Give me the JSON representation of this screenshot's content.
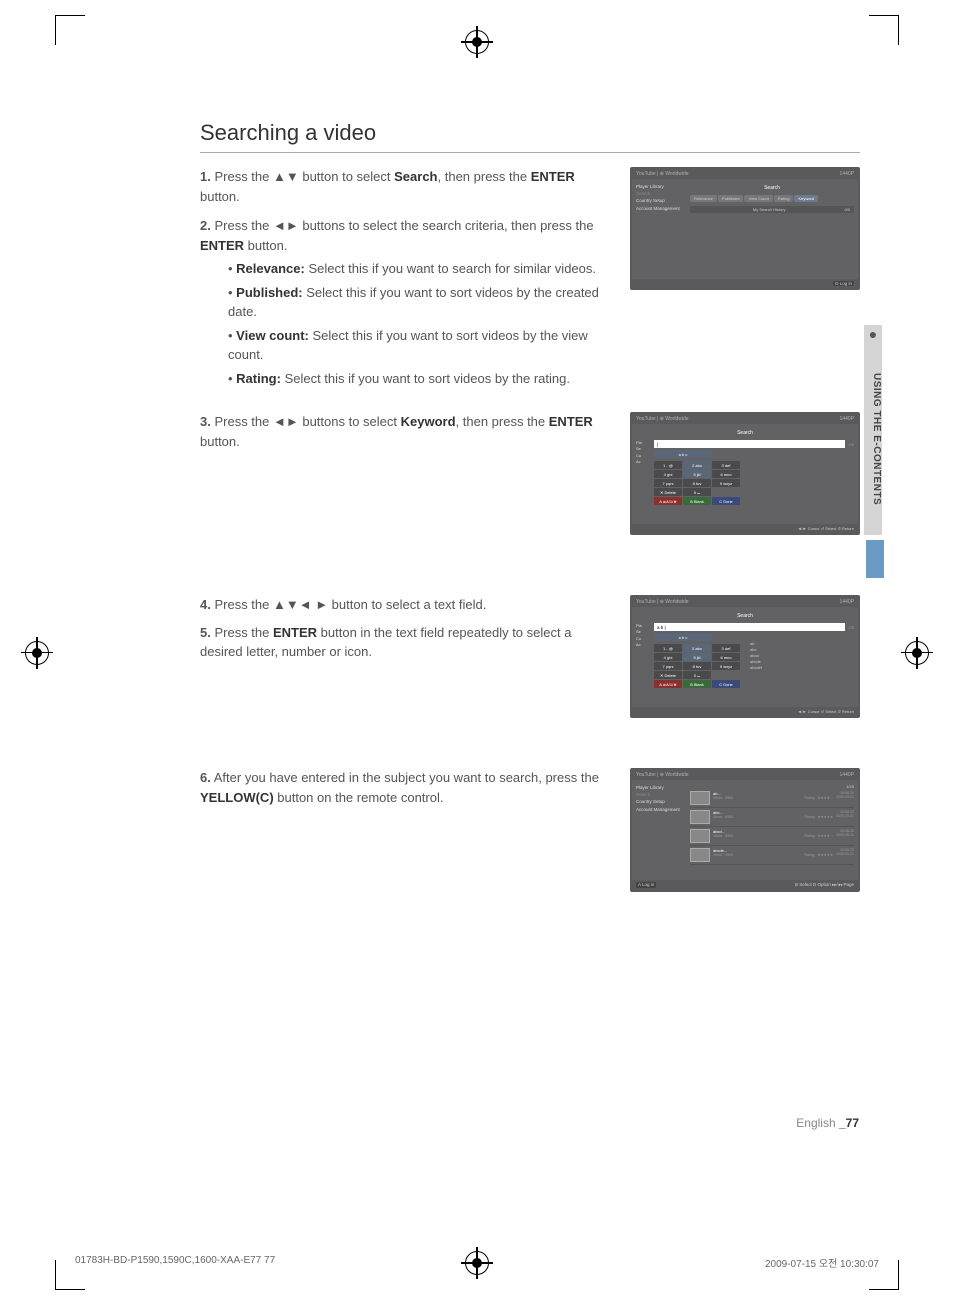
{
  "heading": "Searching a video",
  "steps": [
    {
      "num": "1.",
      "text_parts": [
        "Press the ▲▼  button to select ",
        "Search",
        ", then press the ",
        "ENTER",
        " button."
      ]
    },
    {
      "num": "2.",
      "text_parts": [
        "Press the ◄► buttons to select the search criteria, then press the ",
        "ENTER",
        " button."
      ],
      "bullets": [
        {
          "label": "Relevance:",
          "desc": " Select this if you want to search for similar videos."
        },
        {
          "label": "Published:",
          "desc": " Select this if you want to sort videos by the created date."
        },
        {
          "label": "View count:",
          "desc": " Select this if you want to sort videos by the view count."
        },
        {
          "label": "Rating:",
          "desc": " Select this if you want to sort videos by the rating."
        }
      ]
    },
    {
      "num": "3.",
      "text_parts": [
        "Press the ◄► buttons to select ",
        "Keyword",
        ", then press the ",
        "ENTER",
        " button."
      ]
    },
    {
      "num": "4.",
      "text_parts": [
        "Press the ▲▼◄ ► button to select a text field."
      ]
    },
    {
      "num": "5.",
      "text_parts": [
        "Press the ",
        "ENTER",
        " button in the text field repeatedly to select a desired letter, number or icon."
      ]
    },
    {
      "num": "6.",
      "text_parts": [
        "After you have entered in the subject you want to search, press the ",
        "YELLOW(C)",
        " button on the remote control."
      ]
    }
  ],
  "screenshot1": {
    "header_left": "YouTube | ⊕ Worldwide",
    "header_right": "1440P",
    "sidebar": [
      "Player Library",
      "Search",
      "Country Setup",
      "Account Management"
    ],
    "sidebar_active_idx": 1,
    "title": "Search",
    "tabs": [
      "Relevance",
      "Published",
      "View Count",
      "Rating",
      "Keyword"
    ],
    "history_label": "My Search History",
    "history_count": "0/0",
    "footer": "D Log in"
  },
  "screenshot2": {
    "header_left": "YouTube | ⊕ Worldwide",
    "header_right": "1440P",
    "title": "Search",
    "sidebar_abbr": [
      "Pla",
      "Se",
      "Co",
      "Ac"
    ],
    "input_value": "|",
    "page_counter": "/25",
    "selected_key": "a b c",
    "keys": [
      [
        "1  - @",
        "2  abc",
        "3  def",
        ""
      ],
      [
        "4  ghi",
        "5  jkl",
        "6  mno",
        ""
      ],
      [
        "7  pqrs",
        "8  tuv",
        "9  wxyz",
        ""
      ],
      [
        "✕ Delete",
        "0  ⌴",
        "",
        ""
      ],
      [
        "A a/A/1/★",
        "B Blank",
        "C Done",
        ""
      ]
    ],
    "key_colors": [
      [
        "",
        "sel",
        "",
        ""
      ],
      [
        "",
        "sel",
        "",
        ""
      ],
      [
        "",
        "",
        "",
        ""
      ],
      [
        "",
        "",
        "",
        ""
      ],
      [
        "red",
        "green",
        "blue",
        ""
      ]
    ],
    "footer": "◄/► Cursor  ⏎ Select  ↺ Return"
  },
  "screenshot3": {
    "header_left": "YouTube | ⊕ Worldwide",
    "header_right": "1440P",
    "title": "Search",
    "sidebar_abbr": [
      "Pla",
      "Se",
      "Co",
      "Ac"
    ],
    "input_value": "a b |",
    "page_counter": "/25",
    "selected_key": "a b c",
    "keys": [
      [
        "1  - @",
        "2  abc",
        "3  def"
      ],
      [
        "4  ghi",
        "5  jkl",
        "6  mno"
      ],
      [
        "7  pqrs",
        "8  tuv",
        "9  wxyz"
      ],
      [
        "✕ Delete",
        "0  ⌴",
        ""
      ],
      [
        "A a/A/1/★",
        "B Blank",
        "C Done"
      ]
    ],
    "key_colors": [
      [
        "",
        "sel",
        ""
      ],
      [
        "",
        "sel",
        ""
      ],
      [
        "",
        "",
        ""
      ],
      [
        "",
        "",
        ""
      ],
      [
        "red",
        "green",
        "blue"
      ]
    ],
    "suggestions": [
      "ab",
      "abc",
      "abcd",
      "abcde",
      "abcdef"
    ],
    "footer": "◄/► Cursor  ⏎ Select  ↺ Return"
  },
  "screenshot4": {
    "header_left": "YouTube | ⊕ Worldwide",
    "header_right": "1440P",
    "sidebar": [
      "Player Library",
      "Search",
      "Country Setup",
      "Account Management"
    ],
    "sidebar_active_idx": 1,
    "page": "1/25",
    "results": [
      {
        "title": "ab...",
        "views": "Views : 5960",
        "rating": "Rating : ★★★★☆",
        "duration": "00:06:20",
        "date": "2009-05-21"
      },
      {
        "title": "abc...",
        "views": "Views : 5960",
        "rating": "Rating : ★★★★★",
        "duration": "00:06:20",
        "date": "2009-05-21"
      },
      {
        "title": "abcd...",
        "views": "Views : 5960",
        "rating": "Rating : ★★★★☆",
        "duration": "00:06:20",
        "date": "2009-05-21"
      },
      {
        "title": "abcde...",
        "views": "Views : 5960",
        "rating": "Rating : ★★★★★",
        "duration": "00:06:20",
        "date": "2009-05-21"
      }
    ],
    "footer_left": "A Log in",
    "footer_right": "B Select  D Option  ▸▸/◂◂ Page"
  },
  "side_tab": {
    "dot": "●",
    "text": "USING THE E-CONTENTS"
  },
  "page_footer": {
    "lang": "English",
    "page": "_77"
  },
  "print_footer": {
    "left": "01783H-BD-P1590,1590C,1600-XAA-E77   77",
    "right": "2009-07-15   오전 10:30:07"
  }
}
